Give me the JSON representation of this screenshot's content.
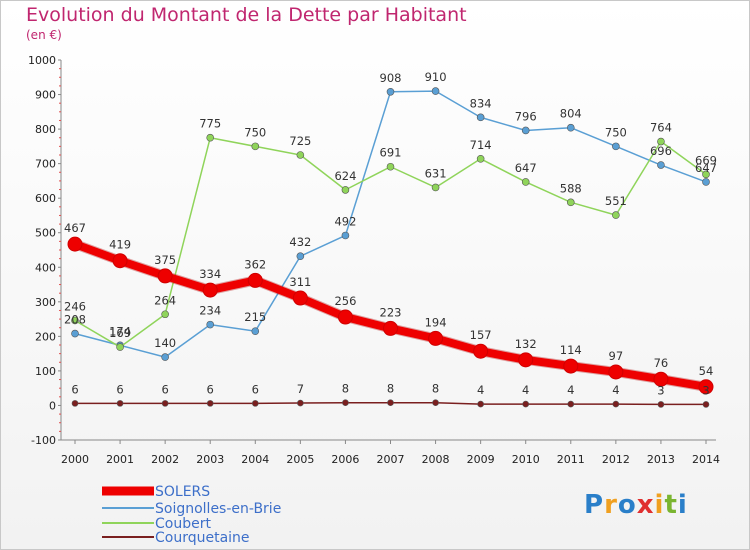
{
  "title": "Evolution du Montant de la Dette par Habitant",
  "subtitle": "(en €)",
  "logo": [
    "P",
    "r",
    "o",
    "x",
    "i",
    "t",
    "i"
  ],
  "logo_colors": [
    "#2a7fc9",
    "#f0a020",
    "#2a7fc9",
    "#e03030",
    "#f0a020",
    "#7ab530",
    "#2a7fc9"
  ],
  "chart_data": {
    "type": "line",
    "x": [
      "2000",
      "2001",
      "2002",
      "2003",
      "2004",
      "2005",
      "2006",
      "2007",
      "2008",
      "2009",
      "2010",
      "2011",
      "2012",
      "2013",
      "2014"
    ],
    "ylim": [
      -100,
      1000
    ],
    "yticks": [
      -100,
      0,
      100,
      200,
      300,
      400,
      500,
      600,
      700,
      800,
      900,
      1000
    ],
    "grid": false,
    "legend_position": "bottom-left",
    "series": [
      {
        "name": "SOLERS",
        "color": "#ee0000",
        "width": 8,
        "marker": 7,
        "values": [
          467,
          419,
          375,
          334,
          362,
          311,
          256,
          223,
          194,
          157,
          132,
          114,
          97,
          76,
          54
        ],
        "labels": [
          "467",
          "419",
          "375",
          "334",
          "362",
          "311",
          "256",
          "223",
          "194",
          "157",
          "132",
          "114",
          "97",
          "76",
          "54"
        ]
      },
      {
        "name": "Soignolles-en-Brie",
        "color": "#5a9fd4",
        "width": 1.5,
        "marker": 3.5,
        "values": [
          208,
          174,
          140,
          234,
          215,
          432,
          492,
          908,
          910,
          834,
          796,
          804,
          750,
          696,
          647
        ],
        "labels": [
          "208",
          "174",
          "140",
          "234",
          "215",
          "432",
          "492",
          "908",
          "910",
          "834",
          "796",
          "804",
          "750",
          "696",
          "647"
        ]
      },
      {
        "name": "Coubert",
        "color": "#8fd45a",
        "width": 1.5,
        "marker": 3.5,
        "values": [
          246,
          169,
          264,
          775,
          750,
          725,
          624,
          691,
          631,
          714,
          647,
          588,
          551,
          764,
          669
        ],
        "labels": [
          "246",
          "169",
          "264",
          "775",
          "750",
          "725",
          "624",
          "691",
          "631",
          "714",
          "647",
          "588",
          "551",
          "764",
          "669"
        ]
      },
      {
        "name": "Courquetaine",
        "color": "#7a1f1f",
        "width": 1.5,
        "marker": 3,
        "values": [
          6,
          6,
          6,
          6,
          6,
          7,
          8,
          8,
          8,
          4,
          4,
          4,
          4,
          3,
          3
        ],
        "labels": [
          "6",
          "6",
          "6",
          "6",
          "6",
          "7",
          "8",
          "8",
          "8",
          "4",
          "4",
          "4",
          "4",
          "3",
          "3"
        ]
      }
    ]
  }
}
